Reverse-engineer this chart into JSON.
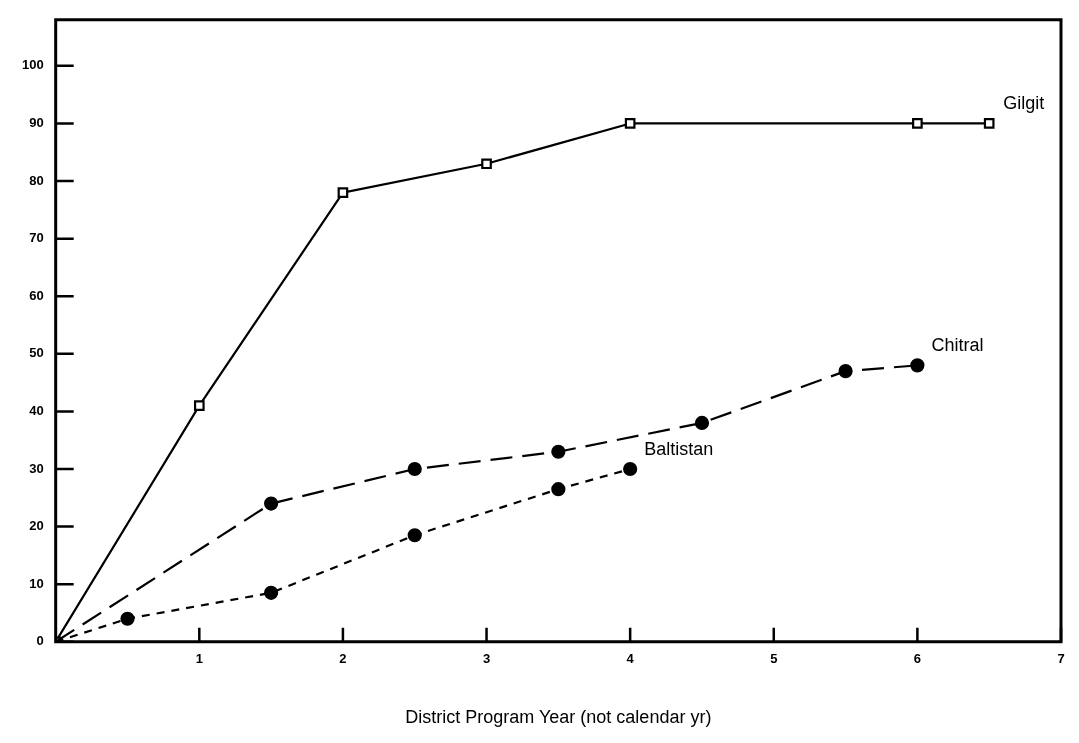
{
  "chart_data": {
    "type": "line",
    "xlabel": "District Program Year (not calendar yr)",
    "xlim": [
      0,
      7
    ],
    "xticks": [
      1,
      2,
      3,
      4,
      5,
      6,
      7
    ],
    "ylim": [
      0,
      108
    ],
    "yticks": [
      0,
      10,
      20,
      30,
      40,
      50,
      60,
      70,
      80,
      90,
      100
    ],
    "grid": false,
    "legend": false,
    "series": [
      {
        "name": "Gilgit",
        "color": "#000000",
        "marker": "square",
        "line_style": "solid",
        "x": [
          0,
          1,
          2,
          3,
          4,
          6,
          6.5
        ],
        "values": [
          0,
          41,
          78,
          83,
          90,
          90,
          90
        ]
      },
      {
        "name": "Chitral",
        "color": "#000000",
        "marker": "circle",
        "line_style": "dashed",
        "x": [
          0,
          1.5,
          2.5,
          3.5,
          4.5,
          5.5,
          6
        ],
        "values": [
          0,
          24,
          30,
          33,
          38,
          47,
          48
        ]
      },
      {
        "name": "Baltistan",
        "color": "#000000",
        "marker": "circle",
        "line_style": "dotted",
        "x": [
          0,
          0.5,
          1.5,
          2.5,
          3.5,
          4
        ],
        "values": [
          0,
          4,
          8.5,
          18.5,
          26.5,
          30
        ]
      }
    ]
  }
}
